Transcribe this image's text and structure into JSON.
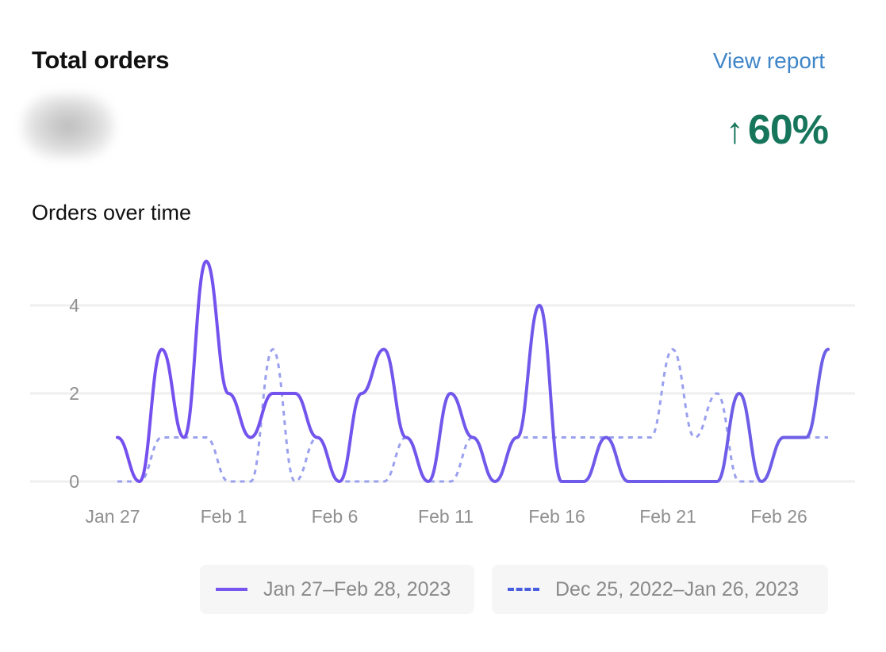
{
  "header": {
    "title": "Total orders",
    "view_report": "View report",
    "change_arrow": "↑",
    "change_value": "60%"
  },
  "chart_section": {
    "title": "Orders over time"
  },
  "legend": {
    "current_label": "Jan 27–Feb 28, 2023",
    "previous_label": "Dec 25, 2022–Jan 26, 2023"
  },
  "colors": {
    "current_start": "#7550ef",
    "current_end": "#6d5fe6",
    "previous": "#9aa0ee",
    "positive": "#16755a",
    "link": "#3f86c8"
  },
  "chart_data": {
    "type": "line",
    "x": [
      "Jan 27",
      "Jan 28",
      "Jan 29",
      "Jan 30",
      "Jan 31",
      "Feb 1",
      "Feb 2",
      "Feb 3",
      "Feb 4",
      "Feb 5",
      "Feb 6",
      "Feb 7",
      "Feb 8",
      "Feb 9",
      "Feb 10",
      "Feb 11",
      "Feb 12",
      "Feb 13",
      "Feb 14",
      "Feb 15",
      "Feb 16",
      "Feb 17",
      "Feb 18",
      "Feb 19",
      "Feb 20",
      "Feb 21",
      "Feb 22",
      "Feb 23",
      "Feb 24",
      "Feb 25",
      "Feb 26",
      "Feb 27",
      "Feb 28"
    ],
    "x_ticks": [
      "Jan 27",
      "Feb 1",
      "Feb 6",
      "Feb 11",
      "Feb 16",
      "Feb 21",
      "Feb 26"
    ],
    "y_ticks": [
      0,
      2,
      4
    ],
    "ylim": [
      0,
      5
    ],
    "grid": true,
    "legend_position": "bottom",
    "series": [
      {
        "name": "Jan 27–Feb 28, 2023",
        "style": "solid",
        "values": [
          1,
          0,
          3,
          1,
          5,
          2,
          1,
          2,
          2,
          1,
          0,
          2,
          3,
          1,
          0,
          2,
          1,
          0,
          1,
          4,
          0,
          0,
          1,
          0,
          0,
          0,
          0,
          0,
          2,
          0,
          1,
          1,
          3
        ]
      },
      {
        "name": "Dec 25, 2022–Jan 26, 2023",
        "style": "dashed",
        "values": [
          0,
          0,
          1,
          1,
          1,
          0,
          0,
          3,
          0,
          1,
          0,
          0,
          0,
          1,
          0,
          0,
          1,
          0,
          1,
          1,
          1,
          1,
          1,
          1,
          1,
          3,
          1,
          2,
          0,
          0,
          1,
          1,
          1
        ]
      }
    ]
  }
}
